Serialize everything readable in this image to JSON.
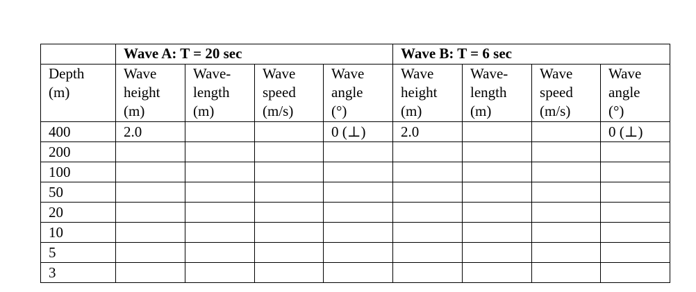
{
  "table": {
    "depth_header": [
      "Depth",
      "(m)"
    ],
    "groups": [
      {
        "title": "Wave A:  T = 20 sec",
        "columns": [
          [
            "Wave",
            "height",
            "(m)"
          ],
          [
            "Wave-",
            "length",
            "(m)"
          ],
          [
            "Wave",
            "speed",
            "(m/s)"
          ],
          [
            "Wave",
            "angle",
            "(°)"
          ]
        ]
      },
      {
        "title": "Wave B:  T = 6 sec",
        "columns": [
          [
            "Wave",
            "height",
            "(m)"
          ],
          [
            "Wave-",
            "length",
            "(m)"
          ],
          [
            "Wave",
            "speed",
            "(m/s)"
          ],
          [
            "Wave",
            "angle",
            "(°)"
          ]
        ]
      }
    ],
    "rows": [
      {
        "depth": "400",
        "cells": [
          "2.0",
          "",
          "",
          "0 (⊥)",
          "2.0",
          "",
          "",
          "0 (⊥)"
        ]
      },
      {
        "depth": "200",
        "cells": [
          "",
          "",
          "",
          "",
          "",
          "",
          "",
          ""
        ]
      },
      {
        "depth": "100",
        "cells": [
          "",
          "",
          "",
          "",
          "",
          "",
          "",
          ""
        ]
      },
      {
        "depth": "50",
        "cells": [
          "",
          "",
          "",
          "",
          "",
          "",
          "",
          ""
        ]
      },
      {
        "depth": "20",
        "cells": [
          "",
          "",
          "",
          "",
          "",
          "",
          "",
          ""
        ]
      },
      {
        "depth": "10",
        "cells": [
          "",
          "",
          "",
          "",
          "",
          "",
          "",
          ""
        ]
      },
      {
        "depth": "5",
        "cells": [
          "",
          "",
          "",
          "",
          "",
          "",
          "",
          ""
        ]
      },
      {
        "depth": "3",
        "cells": [
          "",
          "",
          "",
          "",
          "",
          "",
          "",
          ""
        ]
      }
    ]
  }
}
